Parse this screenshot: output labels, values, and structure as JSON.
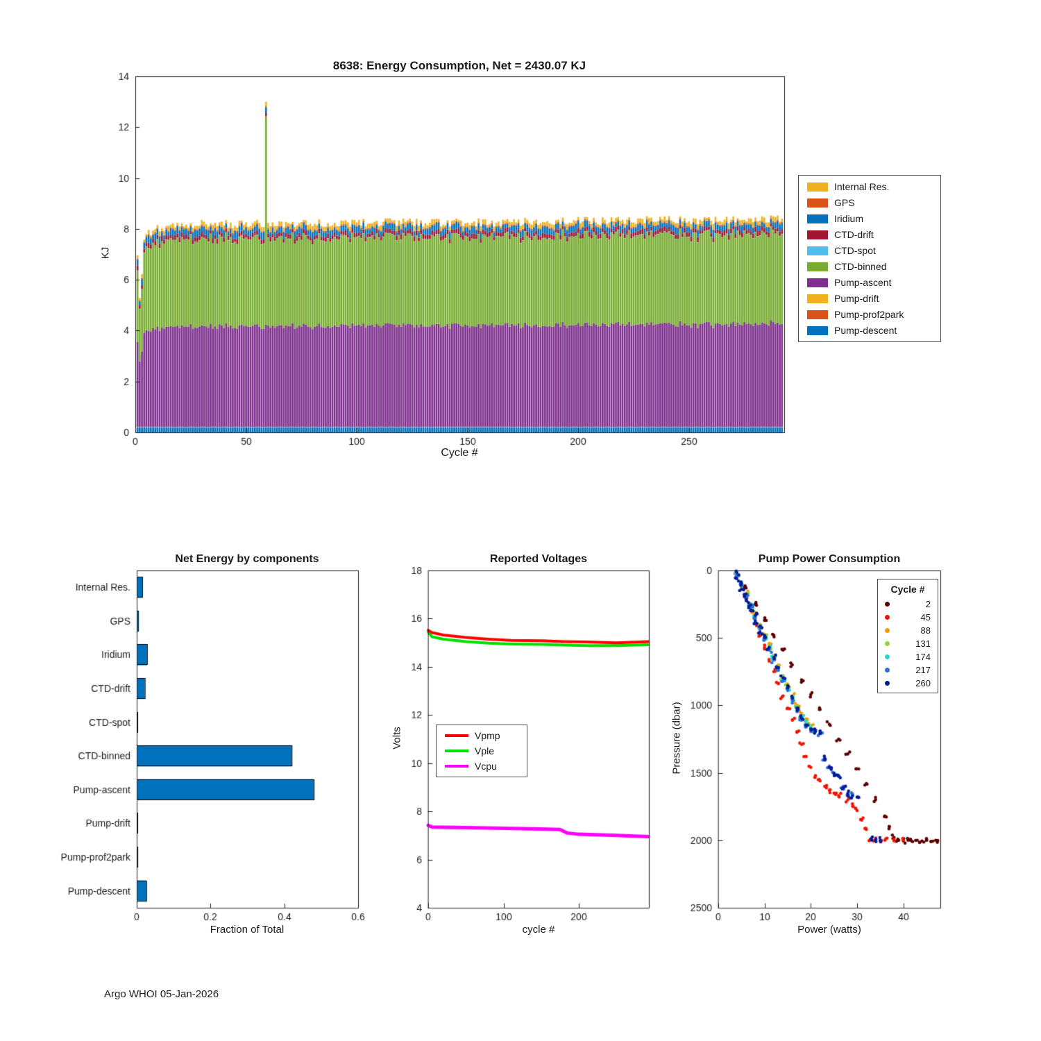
{
  "figure": {
    "footer": "Argo WHOI 05-Jan-2026",
    "background": "#ffffff"
  },
  "chart_data": [
    {
      "id": "energy-consumption",
      "type": "bar",
      "stacked": true,
      "title": "8638: Energy Consumption,  Net = 2430.07 KJ",
      "net_total_kj": 2430.07,
      "xlabel": "Cycle #",
      "ylabel": "KJ",
      "xlim": [
        0,
        293
      ],
      "ylim": [
        0,
        14
      ],
      "xticks": [
        0,
        50,
        100,
        150,
        200,
        250
      ],
      "yticks": [
        0,
        2,
        4,
        6,
        8,
        10,
        12,
        14
      ],
      "n_cycles": 292,
      "legend": [
        {
          "label": "Internal Res.",
          "color": "#EDB120"
        },
        {
          "label": "GPS",
          "color": "#D95319"
        },
        {
          "label": "Iridium",
          "color": "#0072BD"
        },
        {
          "label": "CTD-drift",
          "color": "#A2142F"
        },
        {
          "label": "CTD-spot",
          "color": "#4DBEEE"
        },
        {
          "label": "CTD-binned",
          "color": "#77AC30"
        },
        {
          "label": "Pump-ascent",
          "color": "#7E2F8E"
        },
        {
          "label": "Pump-drift",
          "color": "#EDB120"
        },
        {
          "label": "Pump-prof2park",
          "color": "#D95319"
        },
        {
          "label": "Pump-descent",
          "color": "#0072BD"
        }
      ],
      "stack_bottom_to_top": [
        "Pump-descent",
        "Pump-prof2park",
        "Pump-drift",
        "Pump-ascent",
        "CTD-binned",
        "CTD-spot",
        "CTD-drift",
        "Iridium",
        "GPS",
        "Internal Res."
      ],
      "typical_stack_kj": {
        "Pump-descent": 0.2,
        "Pump-prof2park": 0.01,
        "Pump-drift": 0.01,
        "Pump-ascent": 4.02,
        "CTD-binned": 3.5,
        "CTD-spot": 0.01,
        "CTD-drift": 0.16,
        "Iridium": 0.2,
        "GPS": 0.04,
        "Internal Res.": 0.12
      },
      "total_envelope": [
        [
          1,
          6.9
        ],
        [
          2,
          5.4
        ],
        [
          3,
          6.3
        ],
        [
          4,
          7.6
        ],
        [
          8,
          8.0
        ],
        [
          15,
          8.1
        ],
        [
          30,
          8.2
        ],
        [
          58,
          8.2
        ],
        [
          59,
          13.0
        ],
        [
          60,
          8.2
        ],
        [
          100,
          8.25
        ],
        [
          150,
          8.25
        ],
        [
          200,
          8.3
        ],
        [
          250,
          8.35
        ],
        [
          292,
          8.4
        ]
      ],
      "spike": {
        "cycle": 59,
        "total_kj": 13.0,
        "component": "CTD-binned"
      },
      "jitter_kj": 0.17,
      "seed": 8638
    },
    {
      "id": "net-energy-by-components",
      "type": "bar",
      "orientation": "horizontal",
      "title": "Net Energy by components",
      "xlabel": "Fraction of Total",
      "categories": [
        "Internal Res.",
        "GPS",
        "Iridium",
        "CTD-drift",
        "CTD-spot",
        "CTD-binned",
        "Pump-ascent",
        "Pump-drift",
        "Pump-prof2park",
        "Pump-descent"
      ],
      "values": [
        0.015,
        0.004,
        0.028,
        0.022,
        0.001,
        0.42,
        0.48,
        0.001,
        0.002,
        0.026
      ],
      "xlim": [
        0,
        0.6
      ],
      "xticks": [
        0,
        0.2,
        0.4,
        0.6
      ],
      "bar_color": "#0072BD",
      "bar_edge": "#000000"
    },
    {
      "id": "reported-voltages",
      "type": "line",
      "title": "Reported Voltages",
      "xlabel": "cycle #",
      "ylabel": "Volts",
      "xlim": [
        0,
        293
      ],
      "ylim": [
        4,
        18
      ],
      "xticks": [
        0,
        100,
        200
      ],
      "yticks": [
        4,
        6,
        8,
        10,
        12,
        14,
        16,
        18
      ],
      "series": [
        {
          "name": "Vple",
          "color": "#00E000",
          "width": 4,
          "x": [
            0,
            5,
            20,
            50,
            80,
            110,
            150,
            180,
            210,
            250,
            292
          ],
          "y": [
            15.45,
            15.25,
            15.15,
            15.05,
            14.98,
            14.95,
            14.93,
            14.9,
            14.88,
            14.88,
            14.92
          ]
        },
        {
          "name": "Vpmp",
          "color": "#FF0000",
          "width": 4,
          "x": [
            0,
            5,
            20,
            50,
            80,
            110,
            150,
            180,
            210,
            250,
            292
          ],
          "y": [
            15.52,
            15.42,
            15.32,
            15.22,
            15.15,
            15.1,
            15.08,
            15.05,
            15.03,
            15.0,
            15.05
          ]
        },
        {
          "name": "Vcpu",
          "color": "#FF00FF",
          "width": 5,
          "x": [
            0,
            5,
            50,
            100,
            150,
            175,
            185,
            200,
            250,
            292
          ],
          "y": [
            7.42,
            7.35,
            7.33,
            7.3,
            7.27,
            7.25,
            7.1,
            7.05,
            7.0,
            6.95
          ]
        }
      ],
      "legend": [
        {
          "label": "Vpmp",
          "color": "#FF0000"
        },
        {
          "label": "Vple",
          "color": "#00E000"
        },
        {
          "label": "Vcpu",
          "color": "#FF00FF"
        }
      ]
    },
    {
      "id": "pump-power-consumption",
      "type": "scatter",
      "title": "Pump Power Consumption",
      "xlabel": "Power (watts)",
      "ylabel": "Pressure (dbar)",
      "xlim": [
        0,
        48
      ],
      "ylim": [
        0,
        2500
      ],
      "y_reversed": true,
      "xticks": [
        0,
        10,
        20,
        30,
        40
      ],
      "yticks": [
        0,
        500,
        1000,
        1500,
        2000,
        2500
      ],
      "legend_title": "Cycle #",
      "series": [
        {
          "name": "2",
          "color": "#5C0000",
          "points": [
            [
              4,
              20
            ],
            [
              6,
              130
            ],
            [
              8,
              250
            ],
            [
              10,
              370
            ],
            [
              12,
              480
            ],
            [
              14,
              590
            ],
            [
              16,
              700
            ],
            [
              18,
              810
            ],
            [
              20,
              920
            ],
            [
              22,
              1030
            ],
            [
              24,
              1140
            ],
            [
              26,
              1250
            ],
            [
              28,
              1360
            ],
            [
              30,
              1470
            ],
            [
              32,
              1580
            ],
            [
              34,
              1700
            ],
            [
              36,
              1820
            ],
            [
              37,
              1900
            ],
            [
              38,
              1980
            ],
            [
              39,
              2000
            ],
            [
              40,
              2005
            ],
            [
              41,
              2000
            ],
            [
              42,
              2010
            ],
            [
              43,
              2000
            ],
            [
              44,
              2005
            ],
            [
              45,
              2000
            ],
            [
              46,
              2010
            ],
            [
              47,
              2000
            ]
          ]
        },
        {
          "name": "45",
          "color": "#F01400",
          "points": [
            [
              4,
              30
            ],
            [
              5,
              120
            ],
            [
              6,
              210
            ],
            [
              7,
              300
            ],
            [
              8,
              390
            ],
            [
              9,
              480
            ],
            [
              10,
              570
            ],
            [
              11,
              660
            ],
            [
              12,
              750
            ],
            [
              13,
              840
            ],
            [
              14,
              930
            ],
            [
              15,
              1020
            ],
            [
              16,
              1110
            ],
            [
              17,
              1200
            ],
            [
              18,
              1290
            ],
            [
              19,
              1380
            ],
            [
              20,
              1460
            ],
            [
              21,
              1520
            ],
            [
              22,
              1560
            ],
            [
              23,
              1600
            ],
            [
              24,
              1630
            ],
            [
              25,
              1650
            ],
            [
              26,
              1670
            ],
            [
              28,
              1700
            ],
            [
              29,
              1730
            ],
            [
              30,
              1780
            ],
            [
              31,
              1850
            ],
            [
              32,
              1920
            ],
            [
              33,
              1990
            ],
            [
              34,
              2000
            ],
            [
              35,
              2005
            ],
            [
              36,
              2000
            ],
            [
              38,
              2005
            ],
            [
              40,
              2000
            ]
          ]
        },
        {
          "name": "88",
          "color": "#F59B00",
          "points": [
            [
              4,
              20
            ],
            [
              5,
              100
            ],
            [
              6,
              170
            ],
            [
              7,
              250
            ],
            [
              8,
              330
            ],
            [
              9,
              400
            ],
            [
              10,
              480
            ],
            [
              11,
              550
            ],
            [
              12,
              630
            ],
            [
              13,
              700
            ],
            [
              14,
              780
            ],
            [
              15,
              850
            ],
            [
              16,
              930
            ],
            [
              17,
              1000
            ],
            [
              18,
              1060
            ],
            [
              19,
              1100
            ],
            [
              20,
              1150
            ]
          ]
        },
        {
          "name": "131",
          "color": "#8CDB34",
          "points": [
            [
              4,
              25
            ],
            [
              5,
              105
            ],
            [
              6,
              180
            ],
            [
              7,
              260
            ],
            [
              8,
              340
            ],
            [
              9,
              415
            ],
            [
              10,
              490
            ],
            [
              11,
              565
            ],
            [
              12,
              640
            ],
            [
              13,
              715
            ],
            [
              14,
              790
            ],
            [
              15,
              865
            ],
            [
              16,
              940
            ],
            [
              17,
              1010
            ],
            [
              18,
              1080
            ],
            [
              19,
              1120
            ],
            [
              20,
              1160
            ]
          ]
        },
        {
          "name": "174",
          "color": "#2BD8C8",
          "points": [
            [
              4,
              30
            ],
            [
              5,
              110
            ],
            [
              6,
              185
            ],
            [
              7,
              265
            ],
            [
              8,
              345
            ],
            [
              9,
              425
            ],
            [
              10,
              500
            ],
            [
              11,
              575
            ],
            [
              12,
              650
            ],
            [
              13,
              725
            ],
            [
              14,
              800
            ],
            [
              15,
              875
            ],
            [
              16,
              950
            ],
            [
              17,
              1020
            ],
            [
              18,
              1090
            ],
            [
              19,
              1130
            ],
            [
              20,
              1170
            ],
            [
              21,
              1185
            ]
          ]
        },
        {
          "name": "217",
          "color": "#2A6FDB",
          "points": [
            [
              4,
              35
            ],
            [
              5,
              115
            ],
            [
              6,
              195
            ],
            [
              7,
              275
            ],
            [
              8,
              355
            ],
            [
              9,
              435
            ],
            [
              10,
              515
            ],
            [
              11,
              590
            ],
            [
              12,
              665
            ],
            [
              13,
              740
            ],
            [
              14,
              815
            ],
            [
              15,
              890
            ],
            [
              16,
              965
            ],
            [
              17,
              1040
            ],
            [
              18,
              1110
            ],
            [
              19,
              1160
            ],
            [
              20,
              1180
            ],
            [
              21,
              1195
            ],
            [
              22,
              1210
            ],
            [
              23,
              1390
            ],
            [
              24,
              1450
            ],
            [
              25,
              1500
            ],
            [
              26,
              1520
            ],
            [
              27,
              1600
            ],
            [
              28,
              1650
            ],
            [
              29,
              1665
            ]
          ]
        },
        {
          "name": "260",
          "color": "#001C99",
          "points": [
            [
              4,
              15
            ],
            [
              4,
              60
            ],
            [
              5,
              95
            ],
            [
              5,
              140
            ],
            [
              6,
              175
            ],
            [
              6,
              215
            ],
            [
              7,
              255
            ],
            [
              7,
              295
            ],
            [
              8,
              335
            ],
            [
              8,
              375
            ],
            [
              9,
              415
            ],
            [
              9,
              455
            ],
            [
              10,
              495
            ],
            [
              11,
              570
            ],
            [
              12,
              645
            ],
            [
              13,
              720
            ],
            [
              14,
              795
            ],
            [
              15,
              870
            ],
            [
              16,
              945
            ],
            [
              17,
              1020
            ],
            [
              18,
              1095
            ],
            [
              19,
              1150
            ],
            [
              20,
              1175
            ],
            [
              21,
              1190
            ],
            [
              22,
              1205
            ],
            [
              23,
              1395
            ],
            [
              24,
              1460
            ],
            [
              25,
              1505
            ],
            [
              26,
              1525
            ],
            [
              27,
              1610
            ],
            [
              28,
              1655
            ],
            [
              29,
              1670
            ],
            [
              30,
              1680
            ],
            [
              33,
              1990
            ],
            [
              34,
              2000
            ],
            [
              35,
              2000
            ]
          ]
        }
      ]
    }
  ]
}
